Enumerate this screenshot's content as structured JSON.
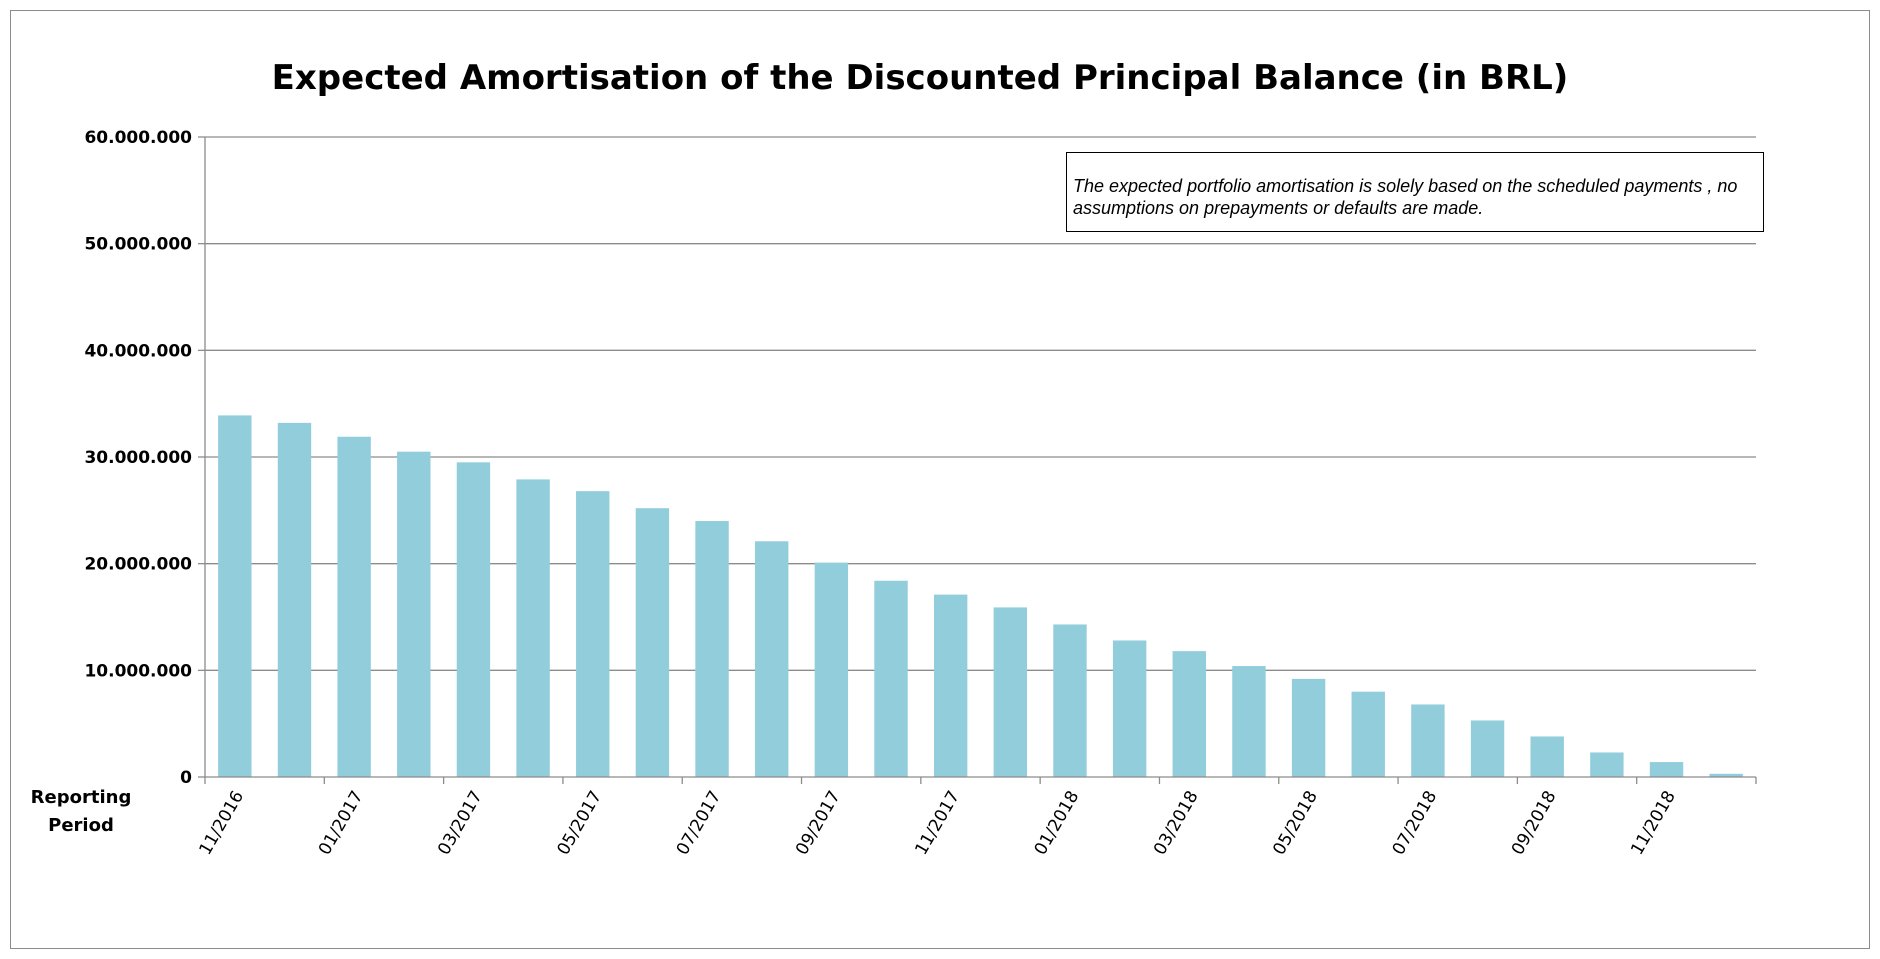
{
  "chart_data": {
    "type": "bar",
    "title": "Expected Amortisation of the Discounted Principal Balance (in BRL)",
    "xlabel": "Reporting Period",
    "ylabel": "",
    "ylim": [
      0,
      60000000
    ],
    "yticks": [
      "0",
      "10.000.000",
      "20.000.000",
      "30.000.000",
      "40.000.000",
      "50.000.000",
      "60.000.000"
    ],
    "grid": true,
    "bar_color": "#92CDDC",
    "annotation": "The expected portfolio amortisation is solely based on the scheduled payments , no assumptions on prepayments or defaults are made.",
    "categories": [
      "11/2016",
      "12/2016",
      "01/2017",
      "02/2017",
      "03/2017",
      "04/2017",
      "05/2017",
      "06/2017",
      "07/2017",
      "08/2017",
      "09/2017",
      "10/2017",
      "11/2017",
      "12/2017",
      "01/2018",
      "02/2018",
      "03/2018",
      "04/2018",
      "05/2018",
      "06/2018",
      "07/2018",
      "08/2018",
      "09/2018",
      "10/2018",
      "11/2018",
      "12/2018"
    ],
    "tick_labels": [
      "11/2016",
      "",
      "01/2017",
      "",
      "03/2017",
      "",
      "05/2017",
      "",
      "07/2017",
      "",
      "09/2017",
      "",
      "11/2017",
      "",
      "01/2018",
      "",
      "03/2018",
      "",
      "05/2018",
      "",
      "07/2018",
      "",
      "09/2018",
      "",
      "11/2018",
      ""
    ],
    "values": [
      33900000,
      33200000,
      31900000,
      30500000,
      29500000,
      27900000,
      26800000,
      25200000,
      24000000,
      22100000,
      20100000,
      18400000,
      17100000,
      15900000,
      14300000,
      12800000,
      11800000,
      10400000,
      9200000,
      8000000,
      6800000,
      5300000,
      3800000,
      2300000,
      1400000,
      300000
    ]
  }
}
